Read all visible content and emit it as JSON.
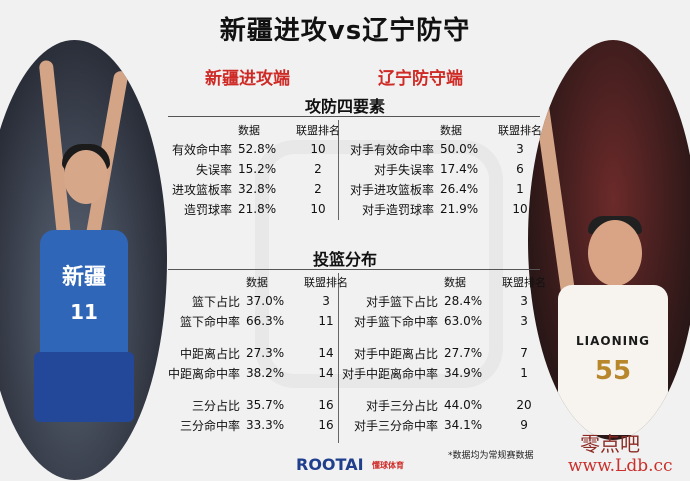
{
  "title": "新疆进攻vs辽宁防守",
  "left_header": "新疆进攻端",
  "right_header": "辽宁防守端",
  "section1": {
    "title": "攻防四要素",
    "col_data": "数据",
    "col_rank": "联盟排名",
    "left": [
      {
        "label": "有效命中率",
        "value": "52.8%",
        "rank": "10"
      },
      {
        "label": "失误率",
        "value": "15.2%",
        "rank": "2"
      },
      {
        "label": "进攻篮板率",
        "value": "32.8%",
        "rank": "2"
      },
      {
        "label": "造罚球率",
        "value": "21.8%",
        "rank": "10"
      }
    ],
    "right": [
      {
        "label": "对手有效命中率",
        "value": "50.0%",
        "rank": "3"
      },
      {
        "label": "对手失误率",
        "value": "17.4%",
        "rank": "6"
      },
      {
        "label": "对手进攻篮板率",
        "value": "26.4%",
        "rank": "1"
      },
      {
        "label": "对手造罚球率",
        "value": "21.9%",
        "rank": "10"
      }
    ]
  },
  "section2": {
    "title": "投篮分布",
    "col_data": "数据",
    "col_rank": "联盟排名",
    "left": [
      {
        "label": "篮下占比",
        "value": "37.0%",
        "rank": "3"
      },
      {
        "label": "篮下命中率",
        "value": "66.3%",
        "rank": "11"
      },
      {
        "label": "中距离占比",
        "value": "27.3%",
        "rank": "14"
      },
      {
        "label": "中距离命中率",
        "value": "38.2%",
        "rank": "14"
      },
      {
        "label": "三分占比",
        "value": "35.7%",
        "rank": "16"
      },
      {
        "label": "三分命中率",
        "value": "33.3%",
        "rank": "16"
      }
    ],
    "right": [
      {
        "label": "对手篮下占比",
        "value": "28.4%",
        "rank": "3"
      },
      {
        "label": "对手篮下命中率",
        "value": "63.0%",
        "rank": "3"
      },
      {
        "label": "对手中距离占比",
        "value": "27.7%",
        "rank": "7"
      },
      {
        "label": "对手中距离命中率",
        "value": "34.9%",
        "rank": "1"
      },
      {
        "label": "对手三分占比",
        "value": "44.0%",
        "rank": "20"
      },
      {
        "label": "对手三分命中率",
        "value": "34.1%",
        "rank": "9"
      }
    ]
  },
  "players": {
    "left_jersey_text": "新疆",
    "left_number": "11",
    "right_jersey_text": "LIAONING",
    "right_number": "55"
  },
  "footer": {
    "logo": "ROOTAI",
    "logo_sub": "懂球体育",
    "note": "*数据均为常规赛数据",
    "watermark": "零点吧",
    "watermark_url": "www.Ldb.cc"
  },
  "colors": {
    "accent_red": "#cf2b26",
    "logo_blue": "#1f3e8c"
  }
}
